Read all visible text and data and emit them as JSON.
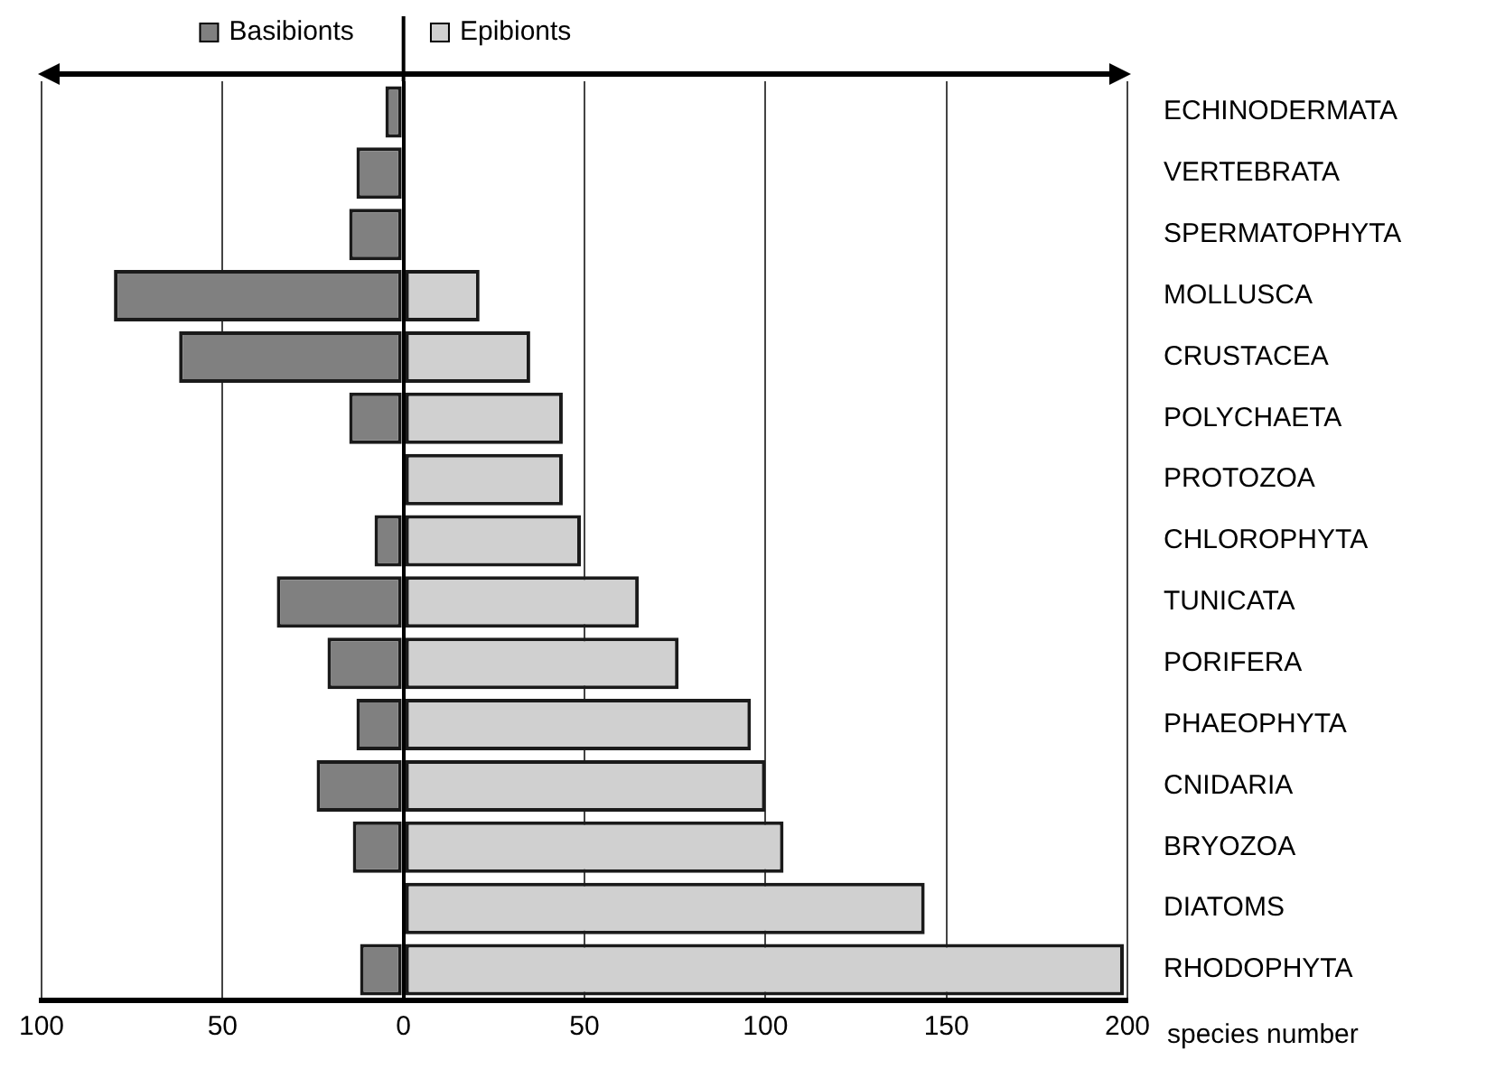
{
  "chart_data": {
    "type": "bar",
    "orientation": "horizontal",
    "stacked": true,
    "xlabel": "species number",
    "categories": [
      "ECHINODERMATA",
      "VERTEBRATA",
      "SPERMATOPHYTA",
      "MOLLUSCA",
      "CRUSTACEA",
      "POLYCHAETA",
      "PROTOZOA",
      "CHLOROPHYTA",
      "TUNICATA",
      "PORIFERA",
      "PHAEOPHYTA",
      "CNIDARIA",
      "BRYOZOA",
      "DIATOMS",
      "RHODOPHYTA"
    ],
    "series": [
      {
        "name": "Basibionts",
        "color": "#808080",
        "values": [
          -5,
          -13,
          -15,
          -80,
          -62,
          -15,
          0,
          -8,
          -35,
          -21,
          -13,
          -24,
          -14,
          0,
          -12
        ]
      },
      {
        "name": "Epibionts",
        "color": "#d0d0d0",
        "values": [
          0,
          0,
          0,
          21,
          35,
          44,
          44,
          49,
          65,
          76,
          96,
          100,
          105,
          144,
          199
        ]
      }
    ],
    "xlim": [
      -100,
      200
    ],
    "xticks": [
      {
        "value": -100,
        "label": "100"
      },
      {
        "value": -50,
        "label": "50"
      },
      0,
      50,
      100,
      150,
      200
    ],
    "grid": "x",
    "legend": "top"
  }
}
